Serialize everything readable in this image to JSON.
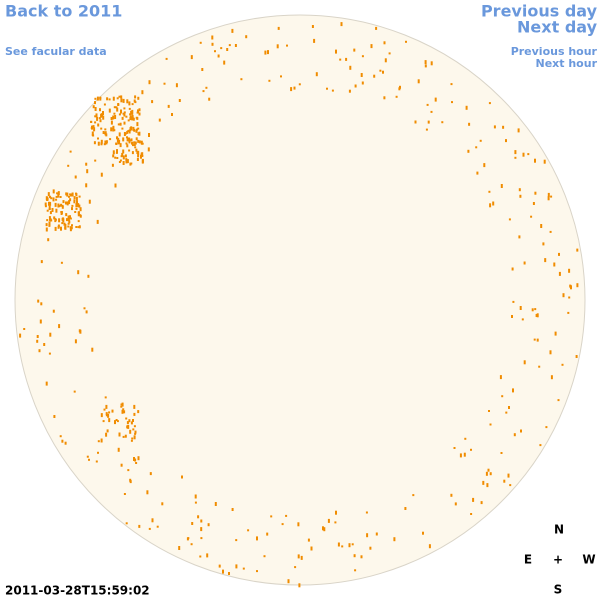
{
  "navigation": {
    "back": "Back to 2011",
    "facular_data": "See facular data",
    "previous_day": "Previous day",
    "next_day": "Next day",
    "previous_hour": "Previous hour",
    "next_hour": "Next hour"
  },
  "timestamp": "2011-03-28T15:59:02",
  "compass": {
    "north": "N",
    "east": "E",
    "center": "+",
    "west": "W",
    "south": "S"
  }
}
